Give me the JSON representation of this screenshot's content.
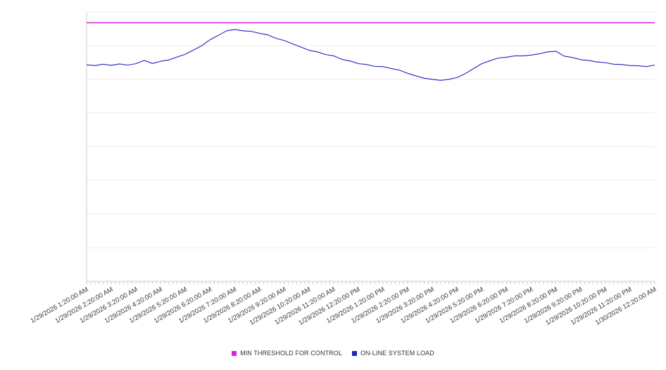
{
  "colors": {
    "background": "#ffffff",
    "gridline": "#ececec",
    "axis": "#cccccc",
    "tick": "#cccccc",
    "label": "#3a3a3a"
  },
  "chart_data": {
    "type": "line",
    "title": "",
    "legend_position": "bottom",
    "x_axis": {
      "labels": [
        "1/29/2026 1:20:00 AM",
        "1/29/2026 2:20:00 AM",
        "1/29/2026 3:20:00 AM",
        "1/29/2026 4:20:00 AM",
        "1/29/2026 5:20:00 AM",
        "1/29/2026 6:20:00 AM",
        "1/29/2026 7:20:00 AM",
        "1/29/2026 8:20:00 AM",
        "1/29/2026 9:20:00 AM",
        "1/29/2026 10:20:00 AM",
        "1/29/2026 11:20:00 AM",
        "1/29/2026 12:20:00 PM",
        "1/29/2026 1:20:00 PM",
        "1/29/2026 2:20:00 PM",
        "1/29/2026 3:20:00 PM",
        "1/29/2026 4:20:00 PM",
        "1/29/2026 5:20:00 PM",
        "1/29/2026 6:20:00 PM",
        "1/29/2026 7:20:00 PM",
        "1/29/2026 8:20:00 PM",
        "1/29/2026 9:20:00 PM",
        "1/29/2026 10:20:00 PM",
        "1/29/2026 11:20:00 PM",
        "1/30/2026 12:20:00 AM"
      ],
      "minor_ticks_per_label": 6,
      "minor_tick_minutes": 10
    },
    "y_axis": {
      "min": 0,
      "max": 100,
      "gridline_step": 12.5,
      "tick_labels_visible": false
    },
    "series": [
      {
        "name": "MIN THRESHOLD FOR CONTROL",
        "type": "constant",
        "color": "#e020e0",
        "value": 96
      },
      {
        "name": "ON-LINE SYSTEM LOAD",
        "type": "line",
        "color": "#2121c8",
        "interval_minutes": 20,
        "values": [
          80.4,
          80.1,
          80.6,
          80.2,
          80.7,
          80.3,
          80.8,
          82.0,
          80.9,
          81.7,
          82.2,
          83.3,
          84.3,
          85.9,
          87.5,
          89.7,
          91.3,
          93.0,
          93.5,
          93.0,
          92.8,
          92.1,
          91.5,
          90.2,
          89.4,
          88.2,
          87.0,
          85.8,
          85.2,
          84.2,
          83.7,
          82.4,
          81.8,
          80.8,
          80.5,
          79.8,
          79.7,
          79.0,
          78.4,
          77.2,
          76.3,
          75.4,
          75.0,
          74.6,
          75.0,
          75.7,
          77.1,
          79.0,
          80.8,
          81.9,
          82.9,
          83.2,
          83.7,
          83.7,
          84.0,
          84.5,
          85.2,
          85.4,
          83.6,
          83.1,
          82.3,
          82.0,
          81.4,
          81.2,
          80.6,
          80.5,
          80.1,
          80.0,
          79.7,
          80.3
        ]
      }
    ]
  }
}
